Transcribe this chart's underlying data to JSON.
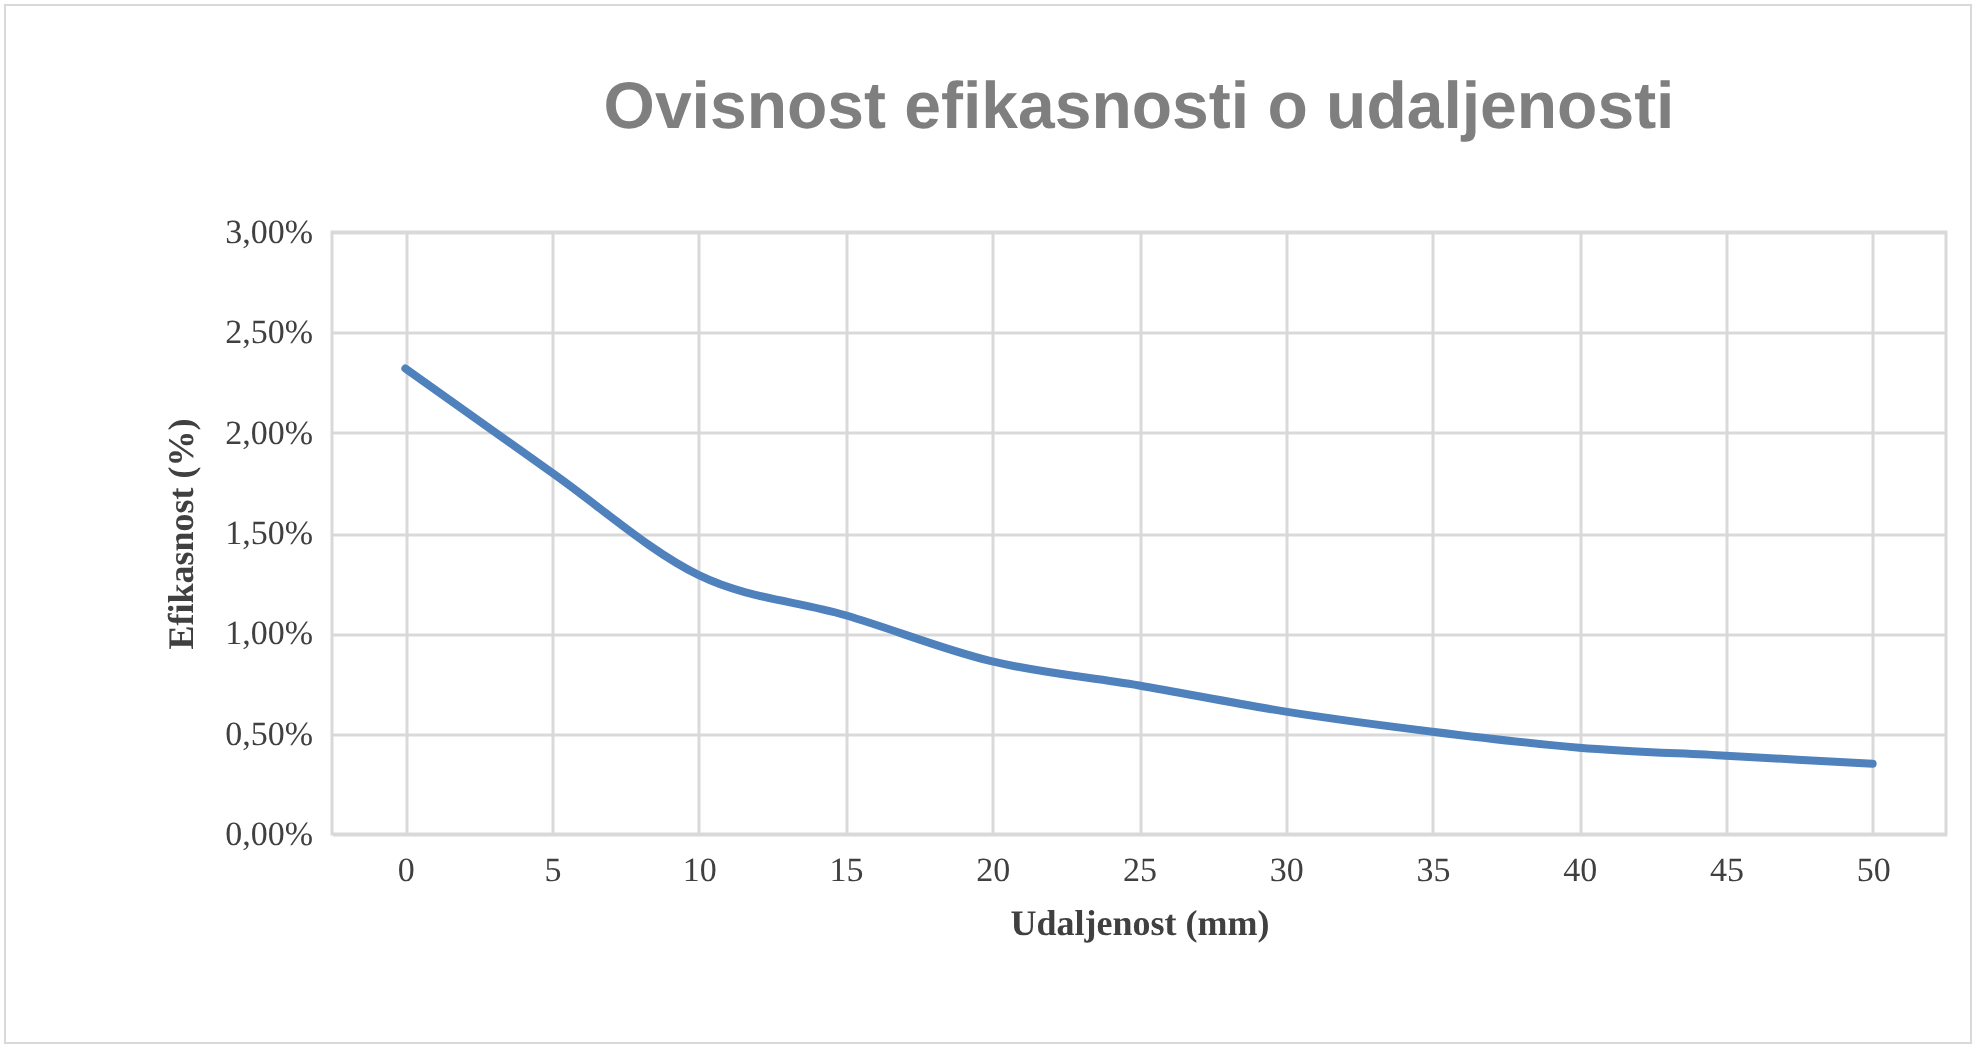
{
  "chart_data": {
    "type": "line",
    "title": "Ovisnost efikasnosti o udaljenosti",
    "xlabel": "Udaljenost (mm)",
    "ylabel": "Efikasnost (%)",
    "categories": [
      "0",
      "5",
      "10",
      "15",
      "20",
      "25",
      "30",
      "35",
      "40",
      "45",
      "50"
    ],
    "series": [
      {
        "color": "#4f81bd",
        "values": [
          2.32,
          1.8,
          1.29,
          1.09,
          0.86,
          0.74,
          0.61,
          0.51,
          0.43,
          0.39,
          0.35
        ]
      }
    ],
    "ylim": [
      0,
      3
    ],
    "yticks": [
      {
        "value": 0,
        "label": "0,00%"
      },
      {
        "value": 0.5,
        "label": "0,50%"
      },
      {
        "value": 1,
        "label": "1,00%"
      },
      {
        "value": 1.5,
        "label": "1,50%"
      },
      {
        "value": 2,
        "label": "2,00%"
      },
      {
        "value": 2.5,
        "label": "2,50%"
      },
      {
        "value": 3,
        "label": "3,00%"
      }
    ],
    "grid": true,
    "marker": "none",
    "line_style": "solid"
  }
}
